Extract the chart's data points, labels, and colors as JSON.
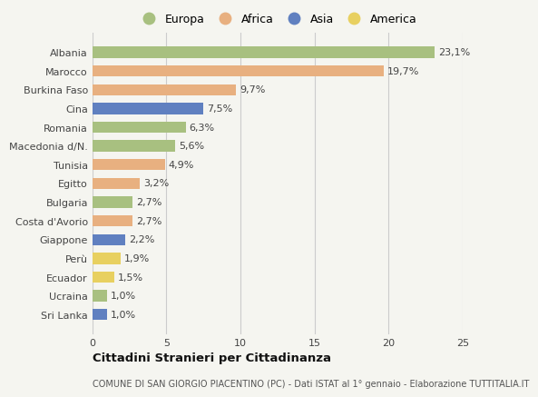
{
  "countries": [
    "Albania",
    "Marocco",
    "Burkina Faso",
    "Cina",
    "Romania",
    "Macedonia d/N.",
    "Tunisia",
    "Egitto",
    "Bulgaria",
    "Costa d'Avorio",
    "Giappone",
    "Perù",
    "Ecuador",
    "Ucraina",
    "Sri Lanka"
  ],
  "values": [
    23.1,
    19.7,
    9.7,
    7.5,
    6.3,
    5.6,
    4.9,
    3.2,
    2.7,
    2.7,
    2.2,
    1.9,
    1.5,
    1.0,
    1.0
  ],
  "labels": [
    "23,1%",
    "19,7%",
    "9,7%",
    "7,5%",
    "6,3%",
    "5,6%",
    "4,9%",
    "3,2%",
    "2,7%",
    "2,7%",
    "2,2%",
    "1,9%",
    "1,5%",
    "1,0%",
    "1,0%"
  ],
  "continents": [
    "Europa",
    "Africa",
    "Africa",
    "Asia",
    "Europa",
    "Europa",
    "Africa",
    "Africa",
    "Europa",
    "Africa",
    "Asia",
    "America",
    "America",
    "Europa",
    "Asia"
  ],
  "continent_colors": {
    "Europa": "#a8c080",
    "Africa": "#e8b080",
    "Asia": "#6080c0",
    "America": "#e8d060"
  },
  "legend_order": [
    "Europa",
    "Africa",
    "Asia",
    "America"
  ],
  "title": "Cittadini Stranieri per Cittadinanza",
  "subtitle": "COMUNE DI SAN GIORGIO PIACENTINO (PC) - Dati ISTAT al 1° gennaio - Elaborazione TUTTITALIA.IT",
  "xlim": [
    0,
    25
  ],
  "xticks": [
    0,
    5,
    10,
    15,
    20,
    25
  ],
  "background_color": "#f5f5f0",
  "bar_height": 0.6,
  "grid_color": "#cccccc",
  "label_fontsize": 8,
  "ytick_fontsize": 8,
  "xtick_fontsize": 8
}
